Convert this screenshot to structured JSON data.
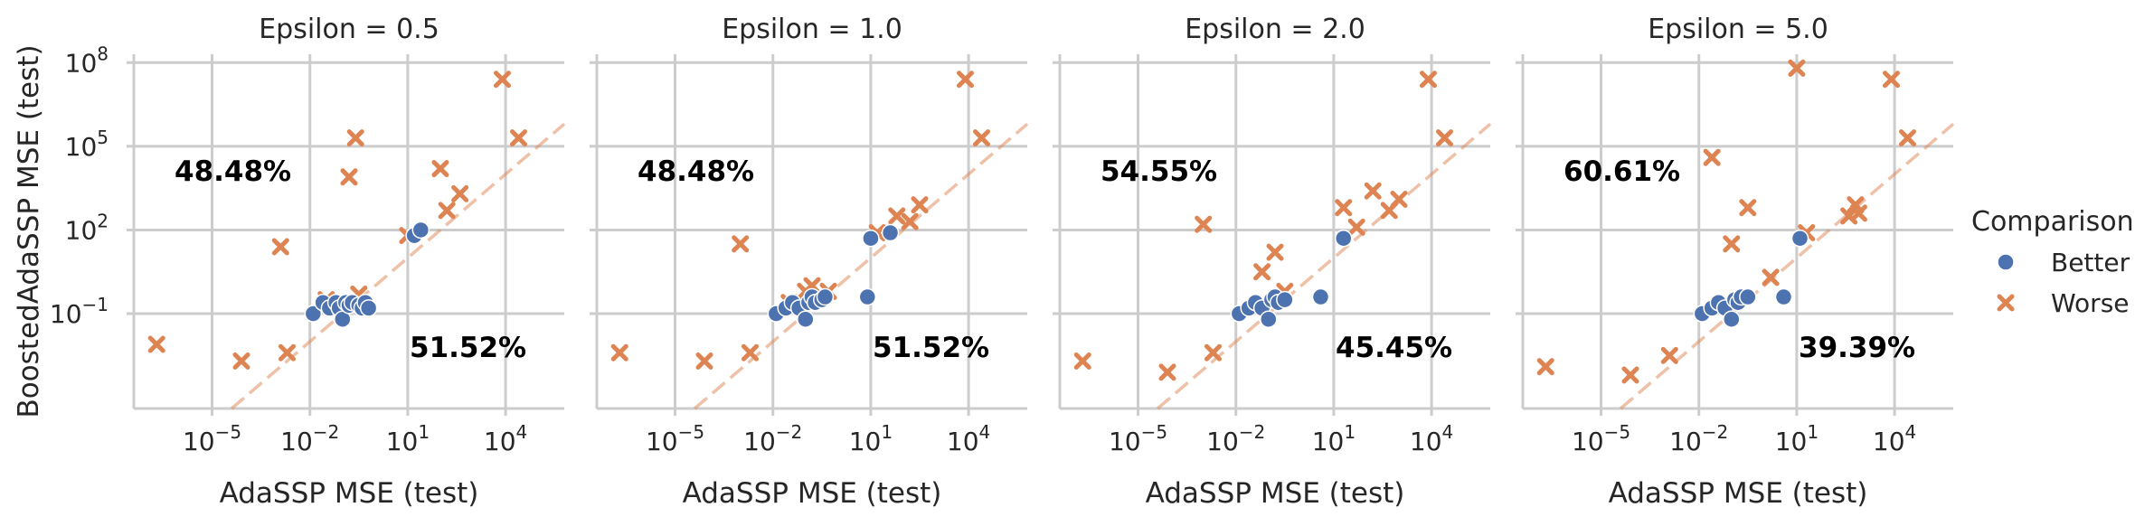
{
  "chart_data": {
    "type": "scatter",
    "scale": "log",
    "xlabel": "AdaSSP MSE (test)",
    "ylabel": "BoostedAdaSSP MSE (test)",
    "xlim_log10": [
      -7.4,
      5.8
    ],
    "ylim_log10": [
      -4.4,
      8.3
    ],
    "xticks_log10": [
      -5,
      -2,
      1,
      4
    ],
    "yticks_log10": [
      -1,
      2,
      5,
      8
    ],
    "legend": {
      "title": "Comparison",
      "position": "right",
      "entries": [
        {
          "name": "Better",
          "color": "#4c72b0",
          "marker": "circle"
        },
        {
          "name": "Worse",
          "color": "#dd8452",
          "marker": "x"
        }
      ]
    },
    "panels": [
      {
        "title": "Epsilon = 0.5",
        "better_pct": "51.52%",
        "worse_pct": "48.48%",
        "better": [
          [
            -1.9,
            -1.0
          ],
          [
            -1.6,
            -0.6
          ],
          [
            -1.4,
            -0.8
          ],
          [
            -1.2,
            -0.6
          ],
          [
            -1.1,
            -0.8
          ],
          [
            -1.0,
            -1.2
          ],
          [
            -0.9,
            -0.6
          ],
          [
            -0.8,
            -0.7
          ],
          [
            -0.7,
            -0.6
          ],
          [
            -0.5,
            -0.7
          ],
          [
            -0.4,
            -0.8
          ],
          [
            -0.3,
            -0.6
          ],
          [
            -0.2,
            -0.8
          ],
          [
            1.2,
            1.8
          ],
          [
            1.4,
            2.0
          ]
        ],
        "worse": [
          [
            -6.7,
            -2.1
          ],
          [
            -4.1,
            -2.7
          ],
          [
            -2.9,
            1.4
          ],
          [
            -2.7,
            -2.4
          ],
          [
            -1.5,
            -0.5
          ],
          [
            -0.8,
            3.9
          ],
          [
            -0.6,
            5.3
          ],
          [
            -0.5,
            -0.3
          ],
          [
            1.0,
            1.8
          ],
          [
            2.0,
            4.2
          ],
          [
            2.2,
            2.7
          ],
          [
            2.6,
            3.3
          ],
          [
            3.9,
            7.4
          ],
          [
            4.4,
            5.3
          ]
        ]
      },
      {
        "title": "Epsilon = 1.0",
        "better_pct": "51.52%",
        "worse_pct": "48.48%",
        "better": [
          [
            -1.9,
            -1.0
          ],
          [
            -1.6,
            -0.8
          ],
          [
            -1.4,
            -0.6
          ],
          [
            -1.2,
            -0.8
          ],
          [
            -1.0,
            -1.2
          ],
          [
            -0.9,
            -0.6
          ],
          [
            -0.8,
            -0.4
          ],
          [
            -0.7,
            -0.6
          ],
          [
            -0.5,
            -0.5
          ],
          [
            -0.4,
            -0.4
          ],
          [
            0.9,
            -0.4
          ],
          [
            1.0,
            1.7
          ],
          [
            1.6,
            1.9
          ]
        ],
        "worse": [
          [
            -6.7,
            -2.4
          ],
          [
            -4.1,
            -2.7
          ],
          [
            -3.0,
            1.5
          ],
          [
            -2.7,
            -2.4
          ],
          [
            -1.5,
            -0.6
          ],
          [
            -1.0,
            -0.2
          ],
          [
            -0.8,
            0.0
          ],
          [
            -0.6,
            -0.4
          ],
          [
            -0.3,
            -0.2
          ],
          [
            1.2,
            1.9
          ],
          [
            1.8,
            2.5
          ],
          [
            2.2,
            2.3
          ],
          [
            2.5,
            2.9
          ],
          [
            3.9,
            7.4
          ],
          [
            4.4,
            5.3
          ]
        ]
      },
      {
        "title": "Epsilon = 2.0",
        "better_pct": "45.45%",
        "worse_pct": "54.55%",
        "better": [
          [
            -1.9,
            -1.0
          ],
          [
            -1.6,
            -0.8
          ],
          [
            -1.4,
            -0.6
          ],
          [
            -1.2,
            -0.8
          ],
          [
            -1.0,
            -1.2
          ],
          [
            -0.9,
            -0.5
          ],
          [
            -0.8,
            -0.4
          ],
          [
            -0.7,
            -0.6
          ],
          [
            -0.5,
            -0.5
          ],
          [
            0.6,
            -0.4
          ],
          [
            1.3,
            1.7
          ]
        ],
        "worse": [
          [
            -6.7,
            -2.7
          ],
          [
            -4.1,
            -3.1
          ],
          [
            -3.0,
            2.2
          ],
          [
            -2.7,
            -2.4
          ],
          [
            -1.2,
            0.5
          ],
          [
            -0.8,
            1.2
          ],
          [
            -0.5,
            -0.2
          ],
          [
            1.3,
            2.8
          ],
          [
            1.7,
            2.1
          ],
          [
            2.2,
            3.4
          ],
          [
            2.7,
            2.7
          ],
          [
            3.0,
            3.1
          ],
          [
            3.9,
            7.4
          ],
          [
            4.4,
            5.3
          ]
        ]
      },
      {
        "title": "Epsilon = 5.0",
        "better_pct": "39.39%",
        "worse_pct": "60.61%",
        "better": [
          [
            -1.9,
            -1.0
          ],
          [
            -1.6,
            -0.8
          ],
          [
            -1.4,
            -0.6
          ],
          [
            -1.2,
            -0.8
          ],
          [
            -1.0,
            -1.2
          ],
          [
            -0.9,
            -0.5
          ],
          [
            -0.8,
            -0.6
          ],
          [
            -0.7,
            -0.4
          ],
          [
            -0.5,
            -0.4
          ],
          [
            0.6,
            -0.4
          ],
          [
            1.1,
            1.7
          ]
        ],
        "worse": [
          [
            -6.7,
            -2.9
          ],
          [
            -4.1,
            -3.2
          ],
          [
            -2.9,
            -2.5
          ],
          [
            -1.6,
            4.6
          ],
          [
            -1.0,
            1.5
          ],
          [
            -0.5,
            2.8
          ],
          [
            0.2,
            0.3
          ],
          [
            1.0,
            7.8
          ],
          [
            1.3,
            1.9
          ],
          [
            2.6,
            2.5
          ],
          [
            2.8,
            2.9
          ],
          [
            2.9,
            2.6
          ],
          [
            3.9,
            7.4
          ],
          [
            4.4,
            5.3
          ]
        ]
      }
    ]
  }
}
